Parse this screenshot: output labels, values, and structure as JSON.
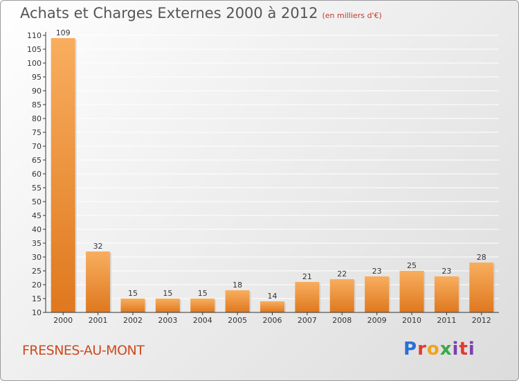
{
  "header": {
    "title": "Achats et Charges Externes 2000 à 2012",
    "unit": "(en milliers d'€)"
  },
  "footer": {
    "commune": "FRESNES-AU-MONT",
    "brand": "Proxiti"
  },
  "colors": {
    "bar_light": "#f7aa5a",
    "bar_dark": "#e07a22",
    "axis": "#333333",
    "grid": "#ffffff"
  },
  "chart_data": {
    "type": "bar",
    "title": "Achats et Charges Externes 2000 à 2012",
    "subtitle": "(en milliers d'€)",
    "categories": [
      "2000",
      "2001",
      "2002",
      "2003",
      "2004",
      "2005",
      "2006",
      "2007",
      "2008",
      "2009",
      "2010",
      "2011",
      "2012"
    ],
    "values": [
      109,
      32,
      15,
      15,
      15,
      18,
      14,
      21,
      22,
      23,
      25,
      23,
      28
    ],
    "ylim": [
      10,
      110
    ],
    "yticks": [
      10,
      15,
      20,
      25,
      30,
      35,
      40,
      45,
      50,
      55,
      60,
      65,
      70,
      75,
      80,
      85,
      90,
      95,
      100,
      105,
      110
    ],
    "grid": true,
    "xlabel": "",
    "ylabel": ""
  }
}
